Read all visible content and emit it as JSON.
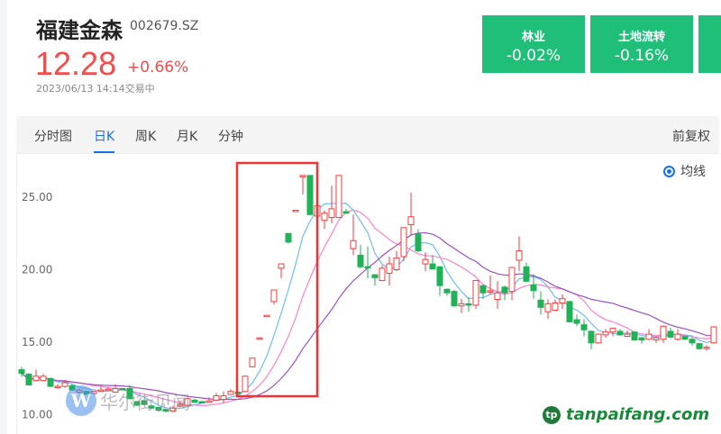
{
  "header": {
    "name": "福建金森",
    "code": "002679.SZ",
    "price": "12.28",
    "change": "+0.66%",
    "time": "2023/06/13 14:14交易中"
  },
  "tiles": [
    {
      "title": "林业",
      "value": "-0.02%"
    },
    {
      "title": "土地流转",
      "value": "-0.16%"
    },
    {
      "title": "",
      "value": ""
    }
  ],
  "tabs": [
    {
      "label": "分时图"
    },
    {
      "label": "日K"
    },
    {
      "label": "月K"
    },
    {
      "label": "月K"
    },
    {
      "label": "分钟"
    }
  ],
  "adjust": "前复权",
  "ma_toggle": "均线",
  "watermarks": {
    "left": "华尔街见闻",
    "left_logo": "W",
    "right": "tanpaifang.com",
    "right_logo": "tp"
  },
  "colors": {
    "up": "#f23c3c",
    "down": "#1fb257",
    "ma5": "#6cbdf5",
    "ma10": "#ff80cc",
    "ma20": "#9b4fc4",
    "highlight": "#f03434",
    "tile": "#1fbf7a",
    "accent": "#1a6fe6"
  },
  "chart_data": {
    "type": "candlestick",
    "yticks": [
      "25.00",
      "20.00",
      "15.00",
      "10.00"
    ],
    "ylim": [
      9.6,
      27.5
    ],
    "moving_averages": [
      5,
      10,
      20
    ],
    "highlight_range": [
      31,
      40
    ],
    "ohlc": [
      [
        13.1,
        12.85,
        13.3,
        12.6
      ],
      [
        12.8,
        12.05,
        12.85,
        12.0
      ],
      [
        12.35,
        12.65,
        13.1,
        12.3
      ],
      [
        12.35,
        12.65,
        12.8,
        12.3
      ],
      [
        12.5,
        11.95,
        12.55,
        11.9
      ],
      [
        11.9,
        11.95,
        12.1,
        11.8
      ],
      [
        11.95,
        12.2,
        12.4,
        11.85
      ],
      [
        12.0,
        11.7,
        12.05,
        11.65
      ],
      [
        11.55,
        11.7,
        11.8,
        11.45
      ],
      [
        11.6,
        11.4,
        11.65,
        11.35
      ],
      [
        11.45,
        11.6,
        11.65,
        11.4
      ],
      [
        11.65,
        11.7,
        11.95,
        11.6
      ],
      [
        11.7,
        11.75,
        11.9,
        11.65
      ],
      [
        11.55,
        11.8,
        12.1,
        11.5
      ],
      [
        11.8,
        11.75,
        11.85,
        11.7
      ],
      [
        11.8,
        11.1,
        12.05,
        11.05
      ],
      [
        10.9,
        10.65,
        10.95,
        10.6
      ],
      [
        10.95,
        10.7,
        11.0,
        10.65
      ],
      [
        10.6,
        10.45,
        10.65,
        10.4
      ],
      [
        10.5,
        10.3,
        10.55,
        10.2
      ],
      [
        10.35,
        10.25,
        10.4,
        10.15
      ],
      [
        10.25,
        10.45,
        10.6,
        10.2
      ],
      [
        10.6,
        10.7,
        10.9,
        10.5
      ],
      [
        10.65,
        11.1,
        11.15,
        10.6
      ],
      [
        11.0,
        10.85,
        11.1,
        10.8
      ],
      [
        10.9,
        10.85,
        10.95,
        10.8
      ],
      [
        10.85,
        10.95,
        11.2,
        10.8
      ],
      [
        11.0,
        11.3,
        11.5,
        10.95
      ],
      [
        11.05,
        11.3,
        11.6,
        10.8
      ],
      [
        11.4,
        11.6,
        11.75,
        11.35
      ],
      [
        11.55,
        11.5,
        11.6,
        11.45
      ],
      [
        11.6,
        12.65,
        12.7,
        11.55
      ],
      [
        13.3,
        13.9,
        13.92,
        13.25
      ],
      [
        15.3,
        15.3,
        15.3,
        15.3
      ],
      [
        16.85,
        16.85,
        16.85,
        16.85
      ],
      [
        17.8,
        18.6,
        18.6,
        17.6
      ],
      [
        20.1,
        20.4,
        20.4,
        19.4
      ],
      [
        22.5,
        21.9,
        22.5,
        21.8
      ],
      [
        24.1,
        24.1,
        24.1,
        24.1
      ],
      [
        26.4,
        26.5,
        26.5,
        25.2
      ],
      [
        26.5,
        23.8,
        26.5,
        23.8
      ],
      [
        23.7,
        24.4,
        24.5,
        23.6
      ],
      [
        23.4,
        23.9,
        24.1,
        22.8
      ],
      [
        23.6,
        24.2,
        25.8,
        23.2
      ],
      [
        23.6,
        26.5,
        26.5,
        23.6
      ],
      [
        24.0,
        23.9,
        24.2,
        23.85
      ],
      [
        21.45,
        22.0,
        23.8,
        21.0
      ],
      [
        21.0,
        20.2,
        21.7,
        20.1
      ],
      [
        20.2,
        20.15,
        21.6,
        19.4
      ],
      [
        19.65,
        19.45,
        19.7,
        18.9
      ],
      [
        19.25,
        20.1,
        20.3,
        19.2
      ],
      [
        19.75,
        20.4,
        20.9,
        18.9
      ],
      [
        20.0,
        20.8,
        21.3,
        19.9
      ],
      [
        20.9,
        22.9,
        22.9,
        20.6
      ],
      [
        23.1,
        23.65,
        25.3,
        22.4
      ],
      [
        22.45,
        21.3,
        22.8,
        21.2
      ],
      [
        20.4,
        20.7,
        21.2,
        19.9
      ],
      [
        20.4,
        20.05,
        21.0,
        20.0
      ],
      [
        20.2,
        18.9,
        20.25,
        18.2
      ],
      [
        18.65,
        18.4,
        18.7,
        18.2
      ],
      [
        18.5,
        17.5,
        18.6,
        17.45
      ],
      [
        17.5,
        17.65,
        18.0,
        17.0
      ],
      [
        17.65,
        17.55,
        18.1,
        17.1
      ],
      [
        17.55,
        19.25,
        19.3,
        17.3
      ],
      [
        18.9,
        18.4,
        18.95,
        18.0
      ],
      [
        18.45,
        18.55,
        19.6,
        18.3
      ],
      [
        17.95,
        18.4,
        19.2,
        17.3
      ],
      [
        18.8,
        18.4,
        18.9,
        17.9
      ],
      [
        18.5,
        20.15,
        20.2,
        17.9
      ],
      [
        20.65,
        21.3,
        22.3,
        19.9
      ],
      [
        20.2,
        19.2,
        20.5,
        19.15
      ],
      [
        18.95,
        18.55,
        19.7,
        18.0
      ],
      [
        17.9,
        17.4,
        18.5,
        16.9
      ],
      [
        17.1,
        17.65,
        17.95,
        16.6
      ],
      [
        17.2,
        17.7,
        17.95,
        17.15
      ],
      [
        17.7,
        18.0,
        18.3,
        17.3
      ],
      [
        17.8,
        16.4,
        17.85,
        16.35
      ],
      [
        16.55,
        16.3,
        16.9,
        16.1
      ],
      [
        16.2,
        15.85,
        16.6,
        15.4
      ],
      [
        15.75,
        14.95,
        15.8,
        14.5
      ],
      [
        14.95,
        15.55,
        15.6,
        14.9
      ],
      [
        15.5,
        15.7,
        15.9,
        15.3
      ],
      [
        15.7,
        15.95,
        16.0,
        15.4
      ],
      [
        15.75,
        15.5,
        15.9,
        15.45
      ],
      [
        15.4,
        15.55,
        15.8,
        15.35
      ],
      [
        15.7,
        15.15,
        15.75,
        15.1
      ],
      [
        15.3,
        15.15,
        15.35,
        14.9
      ],
      [
        15.2,
        15.55,
        15.9,
        15.15
      ],
      [
        15.15,
        15.3,
        15.45,
        14.95
      ],
      [
        15.2,
        16.1,
        16.15,
        14.95
      ],
      [
        15.75,
        15.35,
        16.0,
        15.3
      ],
      [
        15.2,
        15.55,
        15.9,
        15.1
      ],
      [
        15.4,
        15.2,
        15.45,
        15.15
      ],
      [
        15.2,
        14.95,
        15.35,
        14.75
      ],
      [
        14.9,
        14.55,
        14.95,
        14.5
      ],
      [
        14.6,
        14.65,
        14.8,
        14.4
      ],
      [
        14.95,
        16.05,
        16.1,
        14.9
      ]
    ]
  }
}
